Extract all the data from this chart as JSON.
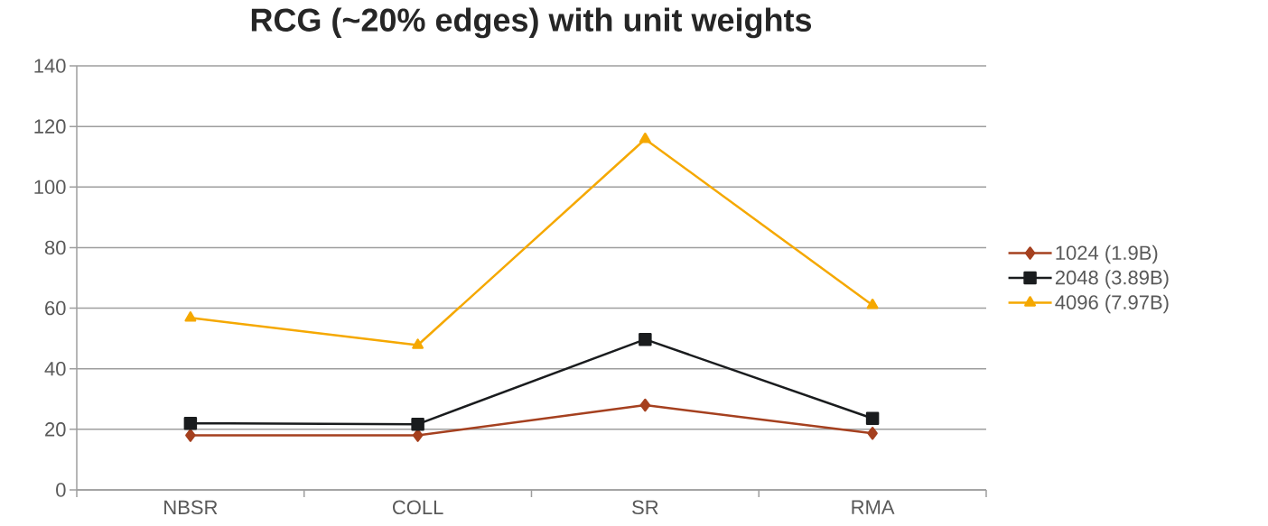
{
  "chart_data": {
    "type": "line",
    "title": "RCG (~20% edges) with unit weights",
    "categories": [
      "NBSR",
      "COLL",
      "SR",
      "RMA"
    ],
    "series": [
      {
        "name": "1024 (1.9B)",
        "color": "#a5401f",
        "marker": "diamond",
        "values": [
          18,
          18,
          28,
          18.7
        ]
      },
      {
        "name": "2048 (3.89B)",
        "color": "#1a1c1e",
        "marker": "square",
        "values": [
          22,
          21.7,
          49.7,
          23.6
        ]
      },
      {
        "name": "4096 (7.97B)",
        "color": "#f5a800",
        "marker": "triangle",
        "values": [
          56.8,
          47.8,
          115.8,
          61
        ]
      }
    ],
    "ylim": [
      0,
      140
    ],
    "yticks": [
      0,
      20,
      40,
      60,
      80,
      100,
      120,
      140
    ],
    "grid": "y",
    "legend": "right",
    "line_style": "solid"
  }
}
